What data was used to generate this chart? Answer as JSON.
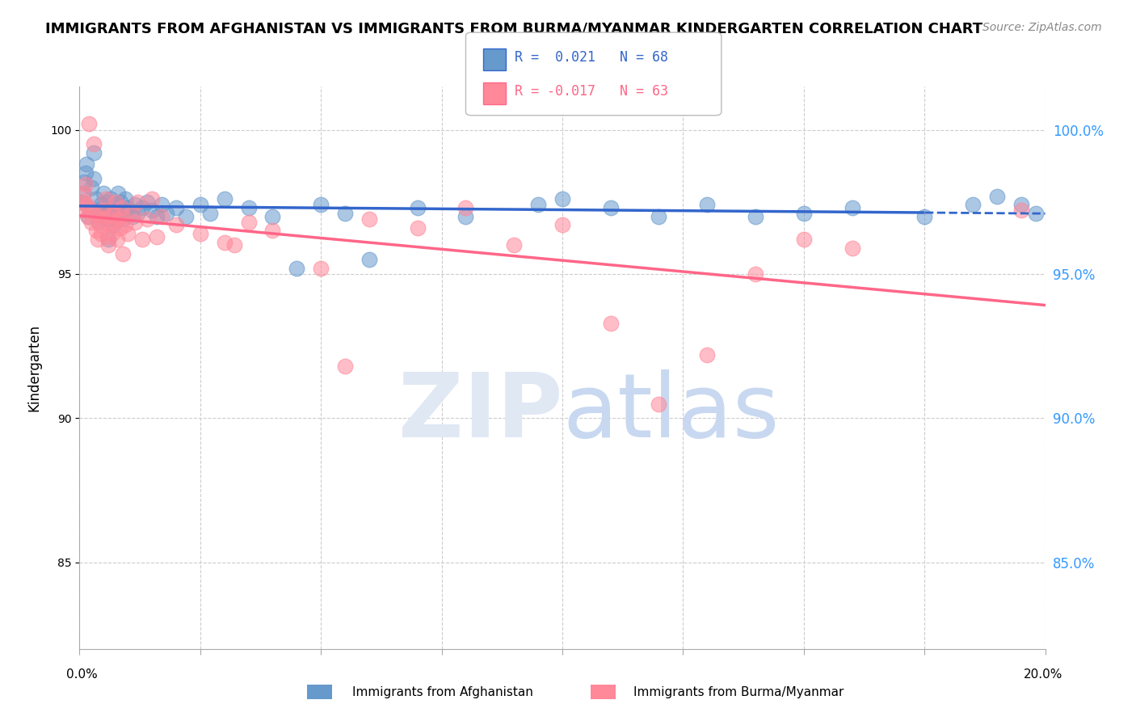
{
  "title": "IMMIGRANTS FROM AFGHANISTAN VS IMMIGRANTS FROM BURMA/MYANMAR KINDERGARTEN CORRELATION CHART",
  "source": "Source: ZipAtlas.com",
  "ylabel": "Kindergarten",
  "xlim": [
    0.0,
    20.0
  ],
  "ylim": [
    82.0,
    101.5
  ],
  "afghanistan_R": 0.021,
  "afghanistan_N": 68,
  "burma_R": -0.017,
  "burma_N": 63,
  "afghanistan_color": "#6699CC",
  "burma_color": "#FF8899",
  "trend_afghanistan_color": "#3366CC",
  "trend_burma_color": "#FF6688",
  "watermark_zip_color": "#E0E8F4",
  "watermark_atlas_color": "#C8D8F0",
  "afghanistan_x": [
    0.05,
    0.08,
    0.1,
    0.12,
    0.15,
    0.18,
    0.2,
    0.25,
    0.3,
    0.35,
    0.38,
    0.4,
    0.42,
    0.45,
    0.48,
    0.5,
    0.55,
    0.58,
    0.6,
    0.65,
    0.68,
    0.7,
    0.72,
    0.75,
    0.78,
    0.8,
    0.85,
    0.88,
    0.9,
    0.95,
    1.0,
    1.1,
    1.15,
    1.2,
    1.3,
    1.4,
    1.5,
    1.6,
    1.7,
    1.8,
    2.0,
    2.2,
    2.5,
    2.7,
    3.0,
    3.5,
    4.0,
    5.0,
    5.5,
    7.0,
    8.0,
    9.5,
    10.0,
    11.0,
    12.0,
    13.0,
    15.0,
    16.0,
    17.5,
    18.5,
    19.0,
    19.5,
    19.8,
    4.5,
    6.0,
    14.0,
    0.3,
    0.6
  ],
  "afghanistan_y": [
    97.5,
    97.8,
    98.2,
    98.5,
    98.8,
    97.0,
    97.3,
    98.0,
    98.3,
    97.6,
    97.2,
    96.8,
    97.0,
    97.4,
    97.1,
    97.8,
    97.5,
    97.2,
    96.9,
    97.6,
    97.3,
    97.0,
    96.7,
    97.1,
    97.4,
    97.8,
    97.5,
    97.2,
    96.9,
    97.6,
    97.3,
    97.0,
    97.4,
    97.1,
    97.3,
    97.5,
    97.2,
    97.0,
    97.4,
    97.1,
    97.3,
    97.0,
    97.4,
    97.1,
    97.6,
    97.3,
    97.0,
    97.4,
    97.1,
    97.3,
    97.0,
    97.4,
    97.6,
    97.3,
    97.0,
    97.4,
    97.1,
    97.3,
    97.0,
    97.4,
    97.7,
    97.4,
    97.1,
    95.2,
    95.5,
    97.0,
    99.2,
    96.2
  ],
  "burma_x": [
    0.05,
    0.08,
    0.1,
    0.12,
    0.15,
    0.18,
    0.2,
    0.25,
    0.3,
    0.35,
    0.38,
    0.4,
    0.42,
    0.45,
    0.48,
    0.5,
    0.55,
    0.58,
    0.6,
    0.65,
    0.68,
    0.7,
    0.72,
    0.75,
    0.78,
    0.8,
    0.85,
    0.88,
    0.9,
    0.95,
    1.0,
    1.1,
    1.15,
    1.2,
    1.3,
    1.4,
    1.5,
    1.6,
    1.7,
    2.0,
    2.5,
    3.0,
    3.5,
    4.0,
    5.0,
    6.0,
    7.0,
    8.0,
    9.0,
    10.0,
    11.0,
    12.0,
    13.0,
    14.0,
    15.0,
    16.0,
    0.3,
    0.6,
    0.9,
    0.2,
    19.5,
    5.5,
    3.2
  ],
  "burma_y": [
    97.2,
    97.5,
    97.8,
    98.1,
    97.4,
    97.0,
    97.3,
    96.8,
    97.1,
    96.5,
    96.2,
    97.0,
    96.7,
    96.4,
    97.2,
    96.9,
    97.6,
    96.3,
    97.0,
    96.7,
    96.4,
    97.1,
    96.8,
    97.5,
    96.2,
    96.9,
    96.6,
    97.3,
    97.0,
    96.7,
    96.4,
    97.1,
    96.8,
    97.5,
    96.2,
    96.9,
    97.6,
    96.3,
    97.0,
    96.7,
    96.4,
    96.1,
    96.8,
    96.5,
    95.2,
    96.9,
    96.6,
    97.3,
    96.0,
    96.7,
    93.3,
    90.5,
    92.2,
    95.0,
    96.2,
    95.9,
    99.5,
    96.0,
    95.7,
    100.2,
    97.2,
    91.8,
    96.0
  ]
}
